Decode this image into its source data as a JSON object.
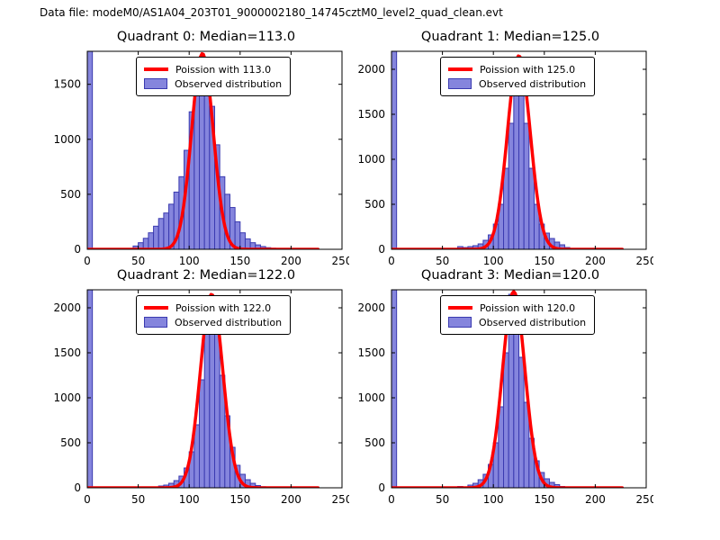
{
  "figure": {
    "title": "Data file: modeM0/AS1A04_203T01_9000002180_14745cztM0_level2_quad_clean.evt"
  },
  "style": {
    "bar_fill": "#8585dd",
    "bar_edge": "#3a3ab0",
    "curve_color": "#ff0000",
    "axes_color": "#000000",
    "background": "#ffffff"
  },
  "chart_data": [
    {
      "type": "bar",
      "title": "Quadrant 0: Median=113.0",
      "median": 113.0,
      "legend": [
        "Poission with 113.0",
        "Observed distribution"
      ],
      "xlim": [
        0,
        250
      ],
      "ylim": [
        0,
        1800
      ],
      "xticks": [
        0,
        50,
        100,
        150,
        200,
        250
      ],
      "yticks": [
        0,
        500,
        1000,
        1500
      ],
      "bin_start": 0,
      "bin_width": 5,
      "counts": [
        1900,
        0,
        0,
        0,
        0,
        0,
        0,
        0,
        0,
        30,
        60,
        100,
        150,
        210,
        280,
        330,
        410,
        520,
        660,
        900,
        1250,
        1550,
        1750,
        1600,
        1300,
        950,
        660,
        500,
        380,
        250,
        150,
        95,
        60,
        40,
        25,
        15,
        10,
        8,
        6,
        5,
        4,
        3,
        3,
        2,
        5,
        0,
        0,
        0,
        0,
        0
      ],
      "poisson": {
        "lambda": 113.0,
        "peak": 1780,
        "xmax": 227
      }
    },
    {
      "type": "bar",
      "title": "Quadrant 1: Median=125.0",
      "median": 125.0,
      "legend": [
        "Poission with 125.0",
        "Observed distribution"
      ],
      "xlim": [
        0,
        250
      ],
      "ylim": [
        0,
        2200
      ],
      "xticks": [
        0,
        50,
        100,
        150,
        200,
        250
      ],
      "yticks": [
        0,
        500,
        1000,
        1500,
        2000
      ],
      "bin_start": 0,
      "bin_width": 5,
      "counts": [
        2300,
        0,
        0,
        0,
        0,
        0,
        0,
        0,
        0,
        0,
        0,
        0,
        0,
        30,
        20,
        30,
        40,
        60,
        100,
        160,
        280,
        500,
        900,
        1400,
        2100,
        1900,
        1400,
        900,
        500,
        280,
        180,
        120,
        80,
        50,
        20,
        10,
        5,
        0,
        0,
        0,
        0,
        0,
        0,
        5,
        0,
        0,
        0,
        0,
        0,
        0
      ],
      "poisson": {
        "lambda": 125.0,
        "peak": 2150,
        "xmax": 227
      }
    },
    {
      "type": "bar",
      "title": "Quadrant 2: Median=122.0",
      "median": 122.0,
      "legend": [
        "Poission with 122.0",
        "Observed distribution"
      ],
      "xlim": [
        0,
        250
      ],
      "ylim": [
        0,
        2200
      ],
      "xticks": [
        0,
        50,
        100,
        150,
        200,
        250
      ],
      "yticks": [
        0,
        500,
        1000,
        1500,
        2000
      ],
      "bin_start": 0,
      "bin_width": 5,
      "counts": [
        2300,
        0,
        0,
        0,
        0,
        0,
        0,
        0,
        0,
        0,
        0,
        0,
        10,
        0,
        20,
        30,
        50,
        80,
        130,
        220,
        400,
        700,
        1200,
        1800,
        2100,
        1750,
        1250,
        800,
        450,
        250,
        150,
        90,
        50,
        25,
        12,
        6,
        0,
        0,
        0,
        0,
        0,
        0,
        0,
        5,
        0,
        0,
        0,
        0,
        0,
        0
      ],
      "poisson": {
        "lambda": 122.0,
        "peak": 2150,
        "xmax": 227
      }
    },
    {
      "type": "bar",
      "title": "Quadrant 3: Median=120.0",
      "median": 120.0,
      "legend": [
        "Poission with 120.0",
        "Observed distribution"
      ],
      "xlim": [
        0,
        250
      ],
      "ylim": [
        0,
        2200
      ],
      "xticks": [
        0,
        50,
        100,
        150,
        200,
        250
      ],
      "yticks": [
        0,
        500,
        1000,
        1500,
        2000
      ],
      "bin_start": 0,
      "bin_width": 5,
      "counts": [
        2300,
        0,
        0,
        0,
        0,
        0,
        0,
        0,
        0,
        0,
        0,
        0,
        0,
        15,
        0,
        30,
        50,
        90,
        150,
        260,
        500,
        900,
        1500,
        2150,
        1950,
        1450,
        950,
        550,
        300,
        170,
        100,
        60,
        35,
        15,
        8,
        0,
        0,
        0,
        0,
        0,
        0,
        0,
        0,
        5,
        0,
        0,
        0,
        0,
        0,
        0
      ],
      "poisson": {
        "lambda": 120.0,
        "peak": 2180,
        "xmax": 227
      }
    }
  ]
}
